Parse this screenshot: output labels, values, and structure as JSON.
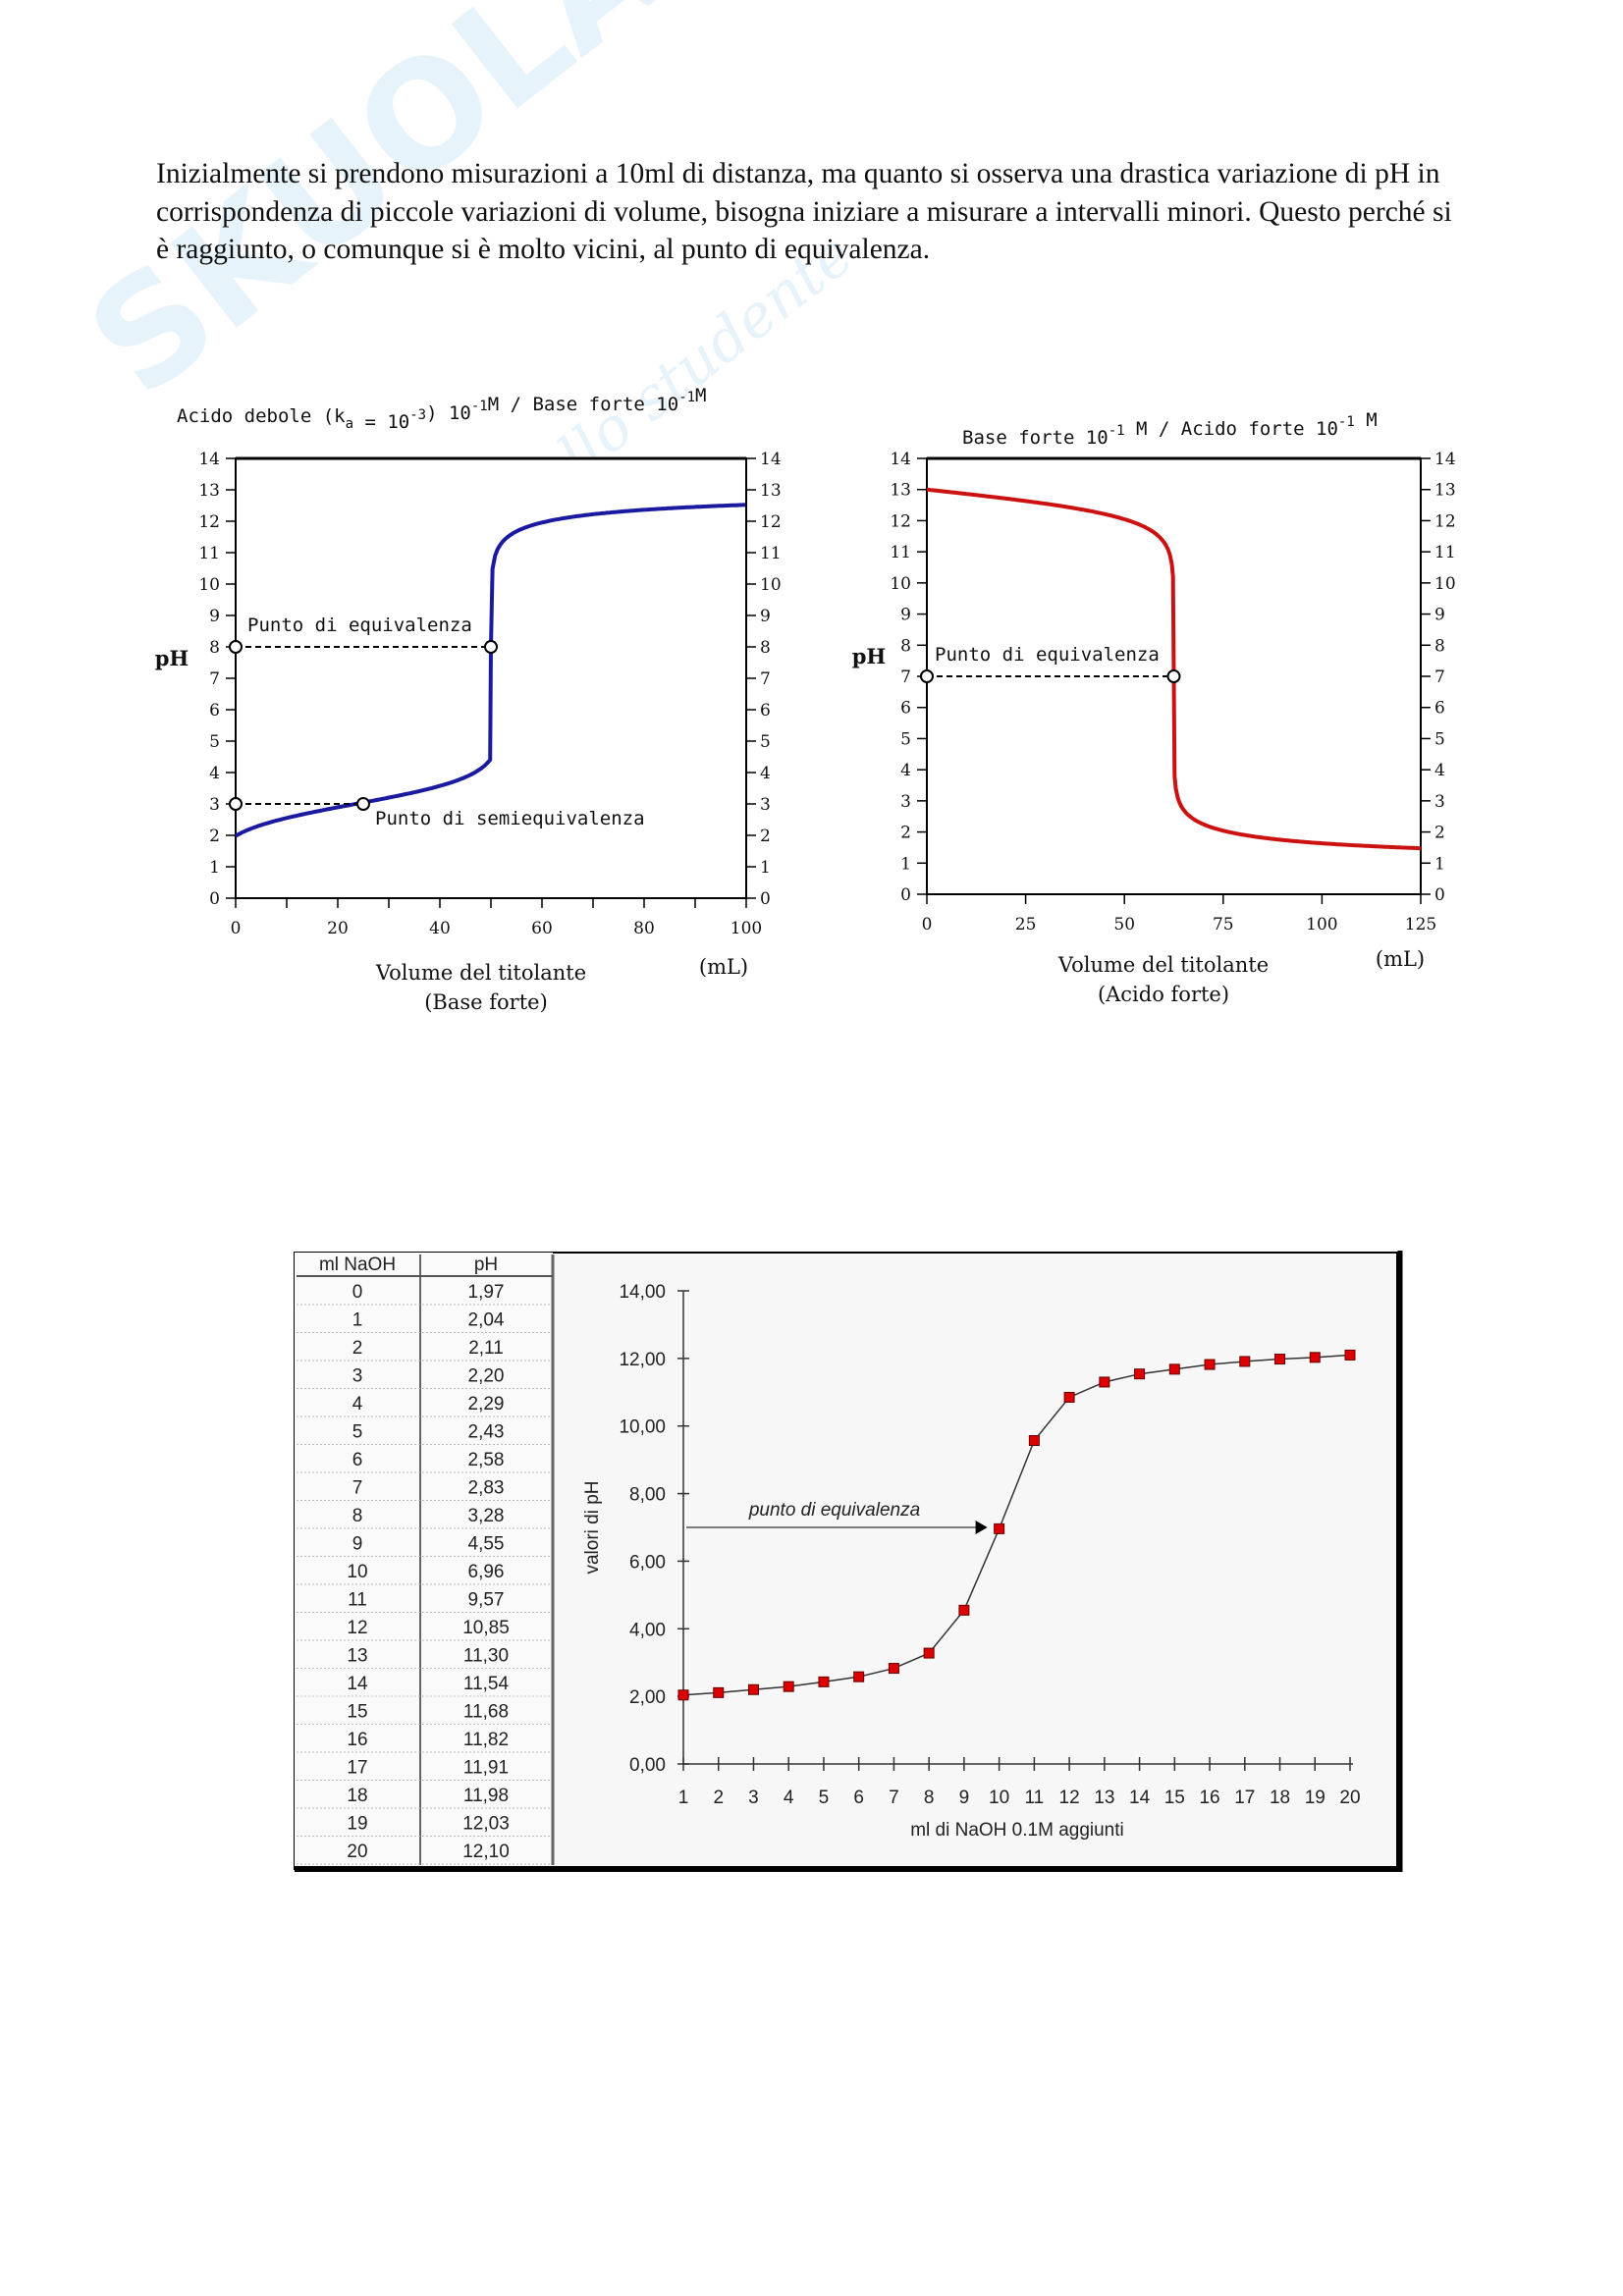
{
  "paragraph": "Inizialmente si prendono misurazioni a 10ml di distanza, ma quanto si osserva una drastica variazione di pH in corrispondenza di piccole variazioni di volume, bisogna iniziare a misurare a intervalli minori. Questo perché si è raggiunto, o comunque si è molto vicini, al punto di equivalenza.",
  "watermark": {
    "logo": "SKUOLA.net",
    "tagline": "il paradiso dello studente"
  },
  "chart_data": [
    {
      "type": "line",
      "title": "Acido debole (ka = 10-3) 10-1 M / Base forte 10-1 M",
      "title_parts": {
        "a": "Acido debole (k",
        "sub": "a",
        "b": " = 10",
        "sup1": "-3",
        "c": ") 10",
        "sup2": "-1",
        "d": "M / Base forte 10",
        "sup3": "-1",
        "e": "M"
      },
      "xlabel": "Volume del titolante",
      "xlabel2": "(Base forte)",
      "xunit": "(mL)",
      "ylabel": "pH",
      "xlim": [
        0,
        100
      ],
      "ylim": [
        0,
        14
      ],
      "xticks": [
        "0",
        "20",
        "40",
        "60",
        "80",
        "100"
      ],
      "yticks": [
        "0",
        "1",
        "2",
        "3",
        "4",
        "5",
        "6",
        "7",
        "8",
        "9",
        "10",
        "11",
        "12",
        "13",
        "14"
      ],
      "line_color": "#1a1aa0",
      "equivalence": {
        "label": "Punto di equivalenza",
        "x": 50,
        "y": 8
      },
      "half_equivalence": {
        "label": "Punto di semiequivalenza",
        "x": 25,
        "y": 3
      },
      "key_points": [
        [
          0,
          1.98
        ],
        [
          25,
          3
        ],
        [
          48,
          4.1
        ],
        [
          50,
          8
        ],
        [
          52,
          11.3
        ],
        [
          100,
          12.5
        ]
      ]
    },
    {
      "type": "line",
      "title": "Base forte 10-1 M / Acido forte 10-1 M",
      "title_parts": {
        "a": "Base forte 10",
        "sup1": "-1",
        "b": " M / Acido forte 10",
        "sup2": "-1",
        "c": " M"
      },
      "xlabel": "Volume del titolante",
      "xlabel2": "(Acido forte)",
      "xunit": "(mL)",
      "ylabel": "pH",
      "xlim": [
        0,
        125
      ],
      "ylim": [
        0,
        14
      ],
      "xticks": [
        "0",
        "25",
        "50",
        "75",
        "100",
        "125"
      ],
      "yticks": [
        "0",
        "1",
        "2",
        "3",
        "4",
        "5",
        "6",
        "7",
        "8",
        "9",
        "10",
        "11",
        "12",
        "13",
        "14"
      ],
      "line_color": "#cc1111",
      "equivalence": {
        "label": "Punto di equivalenza",
        "x": 62.5,
        "y": 7
      },
      "key_points": [
        [
          0,
          13
        ],
        [
          50,
          12.05
        ],
        [
          62.5,
          7
        ],
        [
          75,
          2.7
        ],
        [
          125,
          1.5
        ]
      ]
    },
    {
      "type": "table",
      "columns": [
        "ml NaOH",
        "pH"
      ],
      "rows": [
        [
          "0",
          "1,97"
        ],
        [
          "1",
          "2,04"
        ],
        [
          "2",
          "2,11"
        ],
        [
          "3",
          "2,20"
        ],
        [
          "4",
          "2,29"
        ],
        [
          "5",
          "2,43"
        ],
        [
          "6",
          "2,58"
        ],
        [
          "7",
          "2,83"
        ],
        [
          "8",
          "3,28"
        ],
        [
          "9",
          "4,55"
        ],
        [
          "10",
          "6,96"
        ],
        [
          "11",
          "9,57"
        ],
        [
          "12",
          "10,85"
        ],
        [
          "13",
          "11,30"
        ],
        [
          "14",
          "11,54"
        ],
        [
          "15",
          "11,68"
        ],
        [
          "16",
          "11,82"
        ],
        [
          "17",
          "11,91"
        ],
        [
          "18",
          "11,98"
        ],
        [
          "19",
          "12,03"
        ],
        [
          "20",
          "12,10"
        ]
      ]
    },
    {
      "type": "scatter",
      "xlabel": "ml di NaOH 0.1M aggiunti",
      "ylabel": "valori di pH",
      "xlim": [
        1,
        20
      ],
      "ylim": [
        0,
        14
      ],
      "xticks": [
        "1",
        "2",
        "3",
        "4",
        "5",
        "6",
        "7",
        "8",
        "9",
        "10",
        "11",
        "12",
        "13",
        "14",
        "15",
        "16",
        "17",
        "18",
        "19",
        "20"
      ],
      "yticks": [
        "0,00",
        "2,00",
        "4,00",
        "6,00",
        "8,00",
        "10,00",
        "12,00",
        "14,00"
      ],
      "x": [
        1,
        2,
        3,
        4,
        5,
        6,
        7,
        8,
        9,
        10,
        11,
        12,
        13,
        14,
        15,
        16,
        17,
        18,
        19,
        20
      ],
      "y": [
        2.04,
        2.11,
        2.2,
        2.29,
        2.43,
        2.58,
        2.83,
        3.28,
        4.55,
        6.96,
        9.57,
        10.85,
        11.3,
        11.54,
        11.68,
        11.82,
        11.91,
        11.98,
        12.03,
        12.1
      ],
      "marker_color": "#dd0000",
      "annotation": {
        "label": "punto di equivalenza",
        "y": 7,
        "x": 10
      }
    }
  ]
}
